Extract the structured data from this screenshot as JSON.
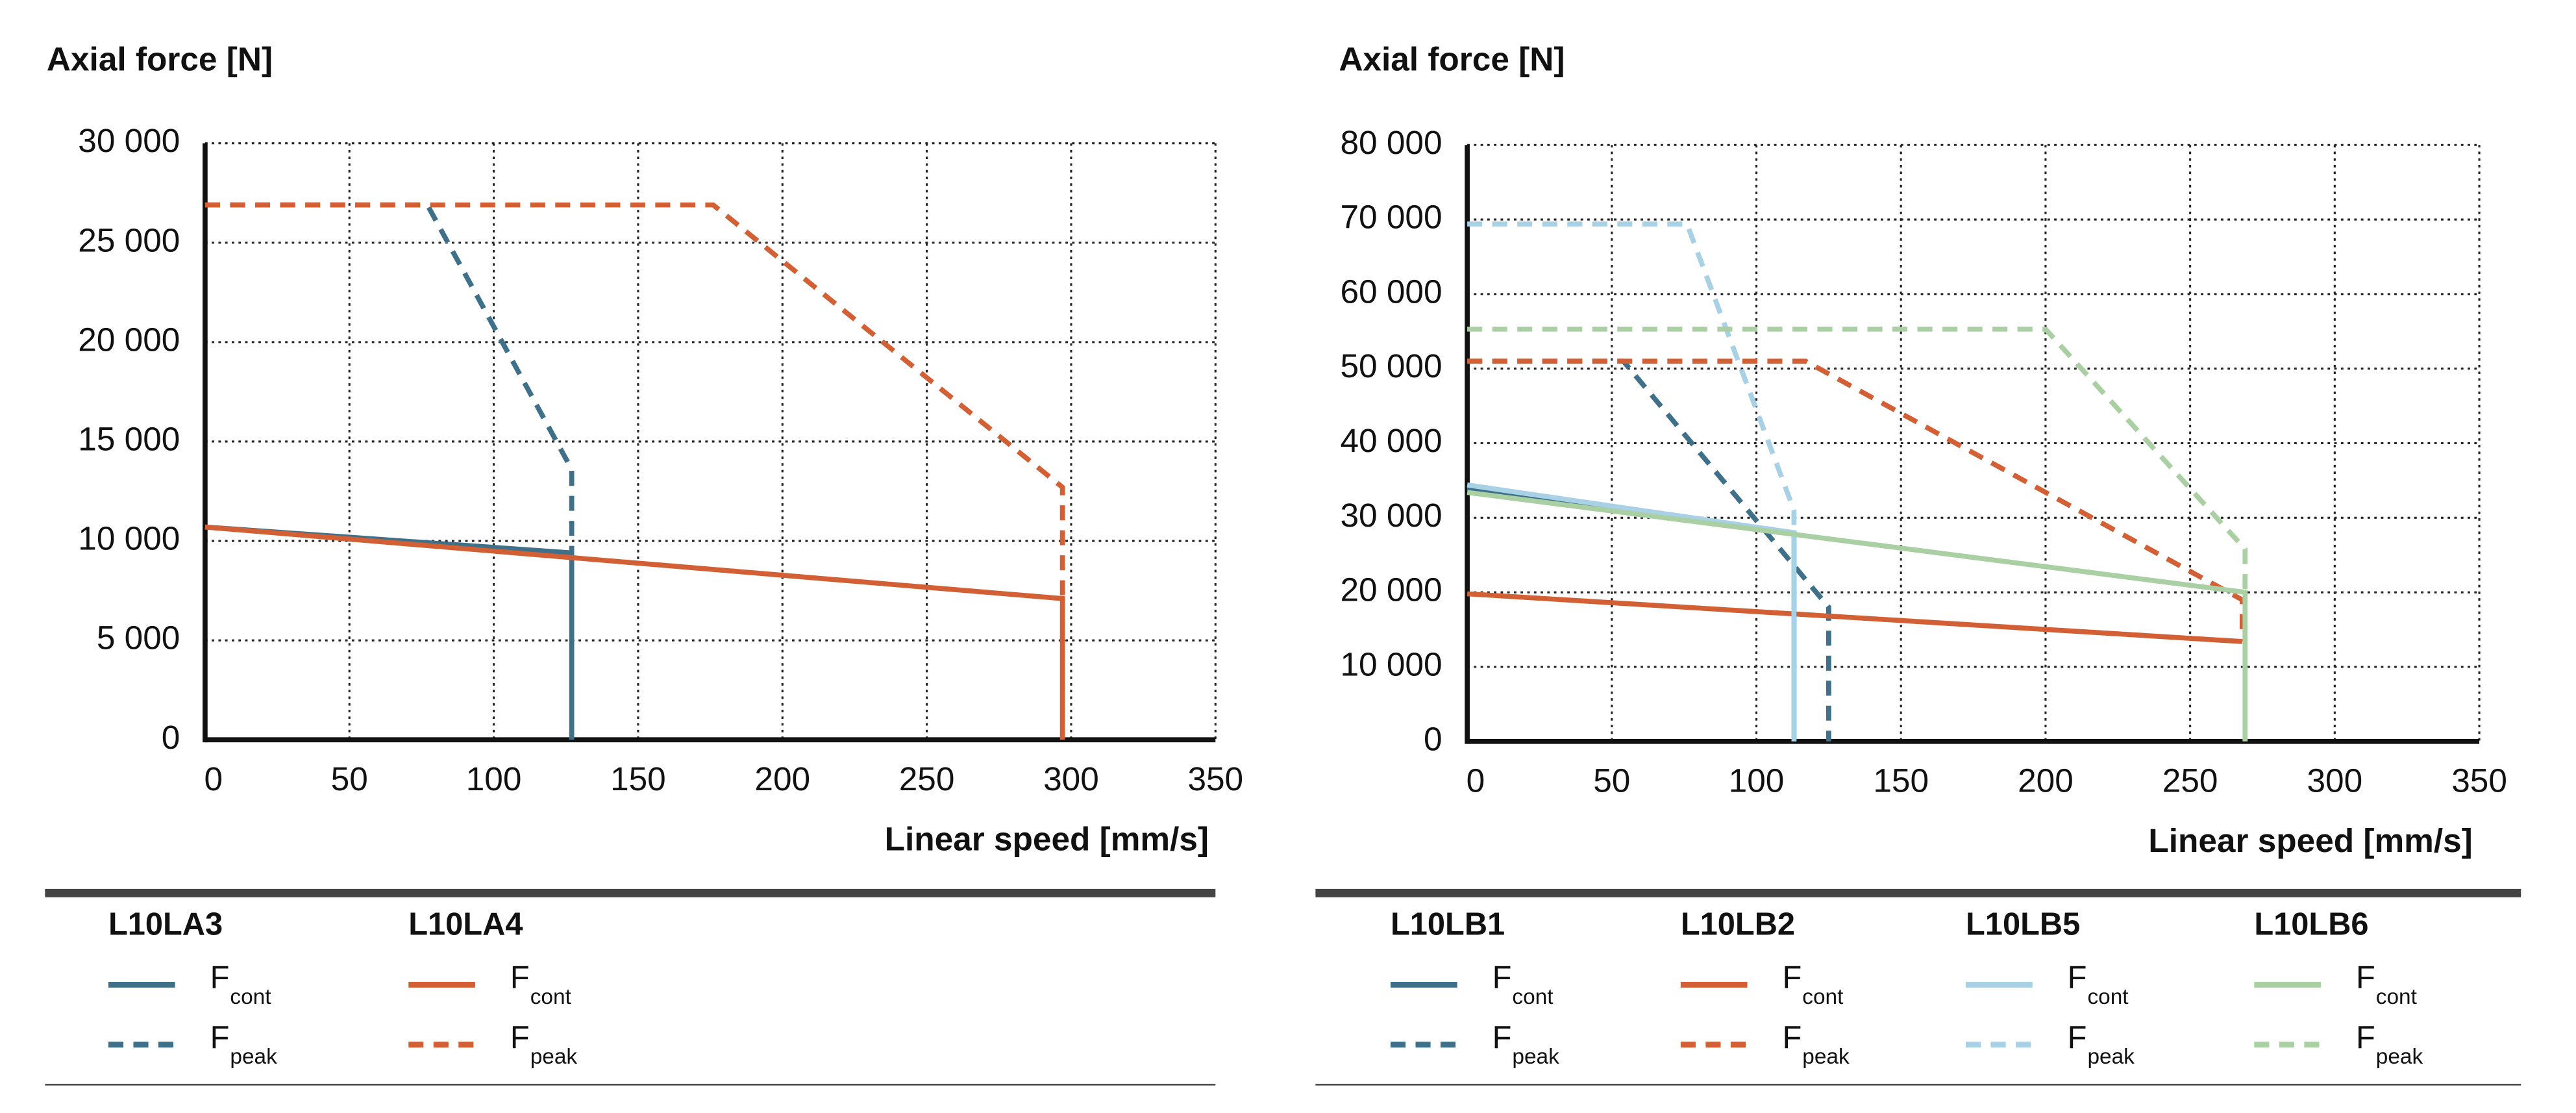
{
  "chart_data": [
    {
      "type": "line",
      "title": "Axial force [N]",
      "x_label": "Linear speed [mm/s]",
      "xlim": [
        0,
        350
      ],
      "xticks": [
        0,
        50,
        100,
        150,
        200,
        250,
        300,
        350
      ],
      "ylim": [
        0,
        30000
      ],
      "yticks": [
        0,
        {
          "value": 5000,
          "label": "5 000"
        },
        {
          "value": 10000,
          "label": "10 000"
        },
        {
          "value": 15000,
          "label": "15 000"
        },
        {
          "value": 20000,
          "label": "20 000"
        },
        {
          "value": 25000,
          "label": "25 000"
        },
        {
          "value": 30000,
          "label": "30 000"
        }
      ],
      "grid": true,
      "groups": [
        {
          "name": "L10LA3",
          "color": "#3f7089",
          "series": [
            {
              "name": "F",
              "subscript": "cont",
              "dashed": false,
              "x": [
                0,
                127,
                127
              ],
              "values": [
                10700,
                9400,
                0
              ]
            },
            {
              "name": "F",
              "subscript": "peak",
              "dashed": true,
              "x": [
                0,
                77,
                127,
                127
              ],
              "values": [
                26900,
                26900,
                13600,
                9400
              ]
            }
          ]
        },
        {
          "name": "L10LA4",
          "color": "#d35f35",
          "series": [
            {
              "name": "F",
              "subscript": "cont",
              "dashed": false,
              "x": [
                0,
                297,
                297
              ],
              "values": [
                10700,
                7100,
                0
              ]
            },
            {
              "name": "F",
              "subscript": "peak",
              "dashed": true,
              "x": [
                0,
                176,
                297,
                297
              ],
              "values": [
                26900,
                26900,
                12700,
                7100
              ]
            }
          ]
        }
      ]
    },
    {
      "type": "line",
      "title": "Axial force [N]",
      "x_label": "Linear speed [mm/s]",
      "xlim": [
        0,
        350
      ],
      "xticks": [
        0,
        50,
        100,
        150,
        200,
        250,
        300,
        350
      ],
      "ylim": [
        0,
        80000
      ],
      "yticks": [
        0,
        {
          "value": 10000,
          "label": "10 000"
        },
        {
          "value": 20000,
          "label": "20 000"
        },
        {
          "value": 30000,
          "label": "30 000"
        },
        {
          "value": 40000,
          "label": "40 000"
        },
        {
          "value": 50000,
          "label": "50 000"
        },
        {
          "value": 60000,
          "label": "60 000"
        },
        {
          "value": 70000,
          "label": "70 000"
        },
        {
          "value": 80000,
          "label": "80 000"
        }
      ],
      "grid": true,
      "groups": [
        {
          "name": "L10LB1",
          "color": "#3f7089",
          "series": [
            {
              "name": "F",
              "subscript": "cont",
              "dashed": false,
              "x": [
                0,
                113,
                113
              ],
              "values": [
                34000,
                28000,
                0
              ]
            },
            {
              "name": "F",
              "subscript": "peak",
              "dashed": true,
              "x": [
                0,
                54,
                125,
                125
              ],
              "values": [
                51000,
                51000,
                18000,
                0
              ]
            }
          ]
        },
        {
          "name": "L10LB2",
          "color": "#d35f35",
          "series": [
            {
              "name": "F",
              "subscript": "cont",
              "dashed": false,
              "x": [
                0,
                268
              ],
              "values": [
                19800,
                13400
              ]
            },
            {
              "name": "F",
              "subscript": "peak",
              "dashed": true,
              "x": [
                0,
                117,
                268,
                268
              ],
              "values": [
                51000,
                51000,
                19000,
                13400
              ]
            }
          ]
        },
        {
          "name": "L10LB5",
          "color": "#a8d1e6",
          "series": [
            {
              "name": "F",
              "subscript": "cont",
              "dashed": false,
              "x": [
                0,
                113,
                113
              ],
              "values": [
                34400,
                28000,
                0
              ]
            },
            {
              "name": "F",
              "subscript": "peak",
              "dashed": true,
              "x": [
                0,
                76,
                113,
                113
              ],
              "values": [
                69400,
                69400,
                31000,
                28000
              ]
            }
          ]
        },
        {
          "name": "L10LB6",
          "color": "#a9cfa3",
          "series": [
            {
              "name": "F",
              "subscript": "cont",
              "dashed": false,
              "x": [
                0,
                269,
                269
              ],
              "values": [
                33400,
                20000,
                0
              ]
            },
            {
              "name": "F",
              "subscript": "peak",
              "dashed": true,
              "x": [
                0,
                200,
                269,
                269
              ],
              "values": [
                55300,
                55300,
                25800,
                20000
              ]
            }
          ]
        }
      ]
    }
  ]
}
